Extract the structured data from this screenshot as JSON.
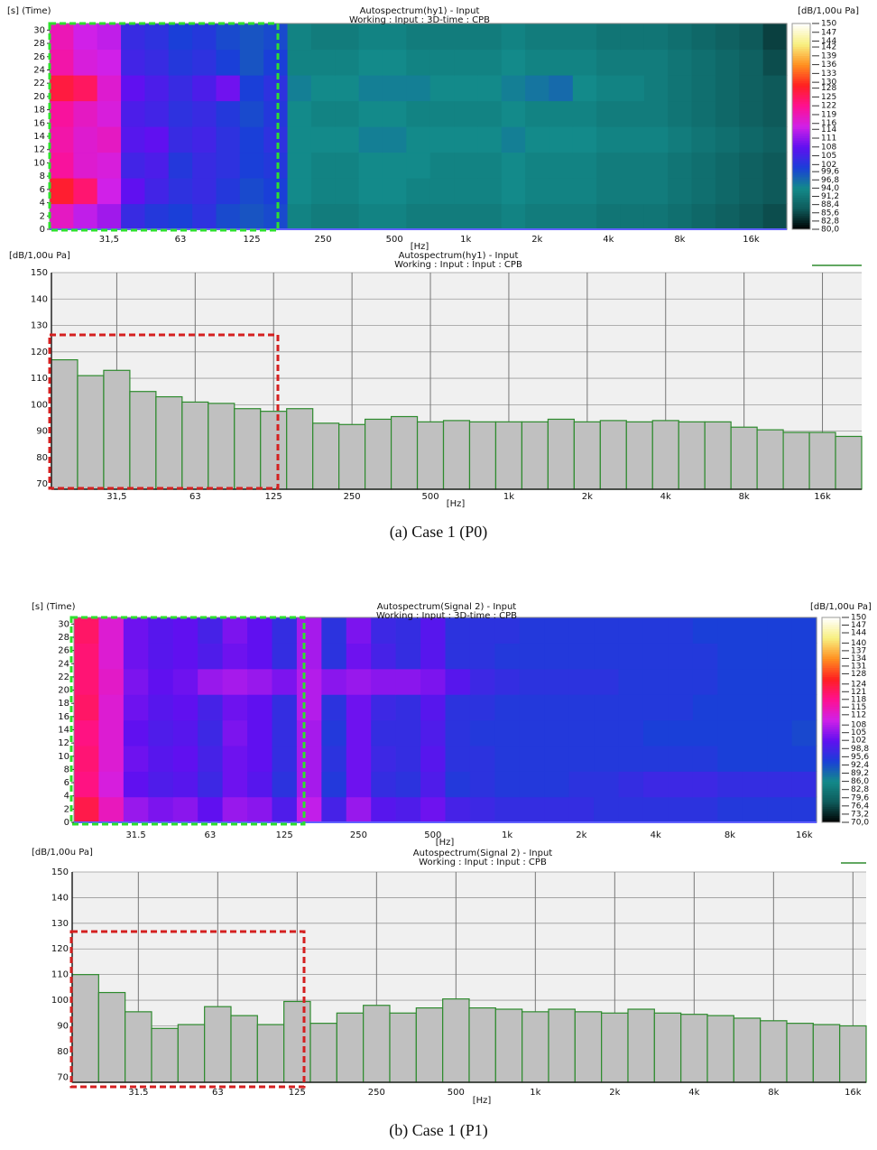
{
  "chart_data": [
    {
      "type": "heatmap",
      "title": "Autospectrum(hy1) - Input",
      "subtitle": "Working : Input : 3D-time : CPB",
      "ylabel": "[s] (Time)",
      "zlabel": "[dB/1,00u Pa]",
      "xlabel": "[Hz]",
      "categories": [
        null,
        null,
        "31,5",
        null,
        null,
        "63",
        null,
        null,
        "125",
        null,
        null,
        "250",
        null,
        null,
        "500",
        null,
        null,
        "1k",
        null,
        null,
        "2k",
        null,
        null,
        "4k",
        null,
        null,
        "8k",
        null,
        null,
        "16k",
        null
      ],
      "ylim": [
        0,
        31
      ],
      "yticks": [
        0,
        2,
        4,
        6,
        8,
        10,
        12,
        14,
        16,
        18,
        20,
        22,
        24,
        26,
        28,
        30
      ],
      "zlim": [
        80,
        150
      ],
      "zticks": [
        150,
        147,
        144,
        142,
        139,
        136,
        133,
        130,
        128,
        125,
        122,
        119,
        116,
        114,
        111,
        108,
        105,
        102,
        {
          "value": 99.6,
          "label": "99,6"
        },
        {
          "value": 96.8,
          "label": "96,8"
        },
        {
          "value": 94,
          "label": "94,0"
        },
        {
          "value": 91.2,
          "label": "91,2"
        },
        {
          "value": 88.4,
          "label": "88,4"
        },
        {
          "value": 85.6,
          "label": "85,6"
        },
        {
          "value": 82.8,
          "label": "82,8"
        },
        {
          "value": 80,
          "label": "80,0"
        }
      ],
      "colormap": [
        "#000000",
        "#0e5a5a",
        "#138a8a",
        "#1a3fd8",
        "#6010f0",
        "#d020e8",
        "#ff1090",
        "#ff2020",
        "#ff9020",
        "#f8f080",
        "#ffffff"
      ],
      "z": [
        [
          118,
          114,
          112,
          104,
          102,
          101,
          103,
          100,
          99,
          100,
          93,
          92,
          92,
          93,
          93,
          92,
          92,
          92,
          92,
          93,
          92,
          92,
          92,
          91,
          91,
          91,
          90,
          89,
          88,
          87,
          86
        ],
        [
          128,
          124,
          115,
          108,
          105,
          103,
          104,
          102,
          100,
          101,
          94,
          93,
          93,
          94,
          94,
          93,
          93,
          93,
          93,
          94,
          93,
          93,
          93,
          92,
          92,
          92,
          91,
          90,
          89,
          88,
          87
        ],
        [
          121,
          117,
          116,
          105,
          106,
          102,
          104,
          103,
          101,
          102,
          94,
          93,
          93,
          94,
          94,
          94,
          93,
          93,
          93,
          94,
          93,
          93,
          93,
          92,
          92,
          92,
          91,
          90,
          89,
          88,
          87
        ],
        [
          120,
          117,
          118,
          107,
          108,
          104,
          105,
          103,
          101,
          103,
          94,
          94,
          94,
          95,
          95,
          94,
          94,
          94,
          94,
          95,
          94,
          94,
          94,
          93,
          93,
          93,
          92,
          91,
          90,
          89,
          88
        ],
        [
          121,
          118,
          116,
          106,
          105,
          103,
          104,
          102,
          100,
          102,
          94,
          93,
          93,
          94,
          94,
          93,
          93,
          93,
          93,
          94,
          93,
          93,
          93,
          92,
          92,
          92,
          91,
          90,
          89,
          88,
          87
        ],
        [
          127,
          125,
          117,
          108,
          106,
          104,
          106,
          109,
          101,
          103,
          95,
          94,
          94,
          95,
          95,
          95,
          94,
          94,
          94,
          95,
          96,
          97,
          94,
          93,
          93,
          92,
          91,
          90,
          89,
          88,
          87
        ],
        [
          120,
          116,
          115,
          105,
          104,
          102,
          103,
          101,
          99,
          101,
          93,
          93,
          93,
          94,
          94,
          93,
          93,
          93,
          93,
          94,
          93,
          93,
          93,
          92,
          92,
          92,
          91,
          90,
          89,
          88,
          86
        ],
        [
          119,
          115,
          114,
          104,
          103,
          101,
          102,
          100,
          99,
          100,
          93,
          92,
          92,
          93,
          93,
          92,
          92,
          92,
          92,
          93,
          92,
          92,
          92,
          91,
          91,
          91,
          90,
          89,
          88,
          87,
          85
        ]
      ]
    },
    {
      "type": "bar",
      "title": "Autospectrum(hy1) - Input",
      "subtitle": "Working : Input : Input : CPB",
      "ylabel": "[dB/1,00u Pa]",
      "xlabel": "[Hz]",
      "caption": "(a)  Case  1  (P0)",
      "categories": [
        null,
        null,
        "31,5",
        null,
        null,
        "63",
        null,
        null,
        "125",
        null,
        null,
        "250",
        null,
        null,
        "500",
        null,
        null,
        "1k",
        null,
        null,
        "2k",
        null,
        null,
        "4k",
        null,
        null,
        "8k",
        null,
        null,
        "16k",
        null
      ],
      "values": [
        117,
        111,
        113,
        105,
        103,
        101,
        100.5,
        98.5,
        97.5,
        98.5,
        93,
        92.5,
        94.5,
        95.5,
        93.5,
        94,
        93.5,
        93.5,
        93.5,
        94.5,
        93.5,
        94,
        93.5,
        94,
        93.5,
        93.5,
        91.5,
        90.5,
        89.5,
        89.5,
        88
      ],
      "color": "#c0c0c0",
      "edgecolor": "#2e8b2e",
      "ylim": [
        68,
        150
      ],
      "yticks": [
        70,
        80,
        90,
        100,
        110,
        120,
        130,
        140,
        150
      ],
      "grid": true
    },
    {
      "type": "heatmap",
      "title": "Autospectrum(Signal 2) - Input",
      "subtitle": "Working : Input : 3D-time : CPB",
      "ylabel": "[s] (Time)",
      "zlabel": "[dB/1,00u Pa]",
      "xlabel": "[Hz]",
      "categories": [
        null,
        null,
        "31.5",
        null,
        null,
        "63",
        null,
        null,
        "125",
        null,
        null,
        "250",
        null,
        null,
        "500",
        null,
        null,
        "1k",
        null,
        null,
        "2k",
        null,
        null,
        "4k",
        null,
        null,
        "8k",
        null,
        null,
        "16k"
      ],
      "ylim": [
        0,
        31
      ],
      "yticks": [
        0,
        2,
        4,
        6,
        8,
        10,
        12,
        14,
        16,
        18,
        20,
        22,
        24,
        26,
        28,
        30
      ],
      "zlim": [
        70,
        150
      ],
      "zticks": [
        150,
        147,
        144,
        140,
        137,
        134,
        131,
        128,
        124,
        121,
        118,
        115,
        112,
        108,
        105,
        102,
        {
          "value": 98.8,
          "label": "98,8"
        },
        {
          "value": 95.6,
          "label": "95,6"
        },
        {
          "value": 92.4,
          "label": "92,4"
        },
        {
          "value": 89.2,
          "label": "89,2"
        },
        {
          "value": 86,
          "label": "86,0"
        },
        {
          "value": 82.8,
          "label": "82,8"
        },
        {
          "value": 79.6,
          "label": "79,6"
        },
        {
          "value": 76.4,
          "label": "76,4"
        },
        {
          "value": 73.2,
          "label": "73,2"
        },
        {
          "value": 70,
          "label": "70,0"
        }
      ],
      "colormap": [
        "#000000",
        "#0e5a5a",
        "#138a8a",
        "#1a3fd8",
        "#6010f0",
        "#d020e8",
        "#ff1090",
        "#ff2020",
        "#ff9020",
        "#f8f080",
        "#ffffff"
      ],
      "z": [
        [
          123,
          114,
          106,
          104,
          105,
          102,
          106,
          105,
          100,
          109,
          99,
          106,
          101,
          100,
          103,
          99,
          98,
          97,
          97,
          97,
          97,
          96,
          96,
          96,
          96,
          96,
          95,
          95,
          95,
          95
        ],
        [
          119,
          111,
          102,
          100,
          101,
          98,
          103,
          101,
          96,
          107,
          95,
          103,
          97,
          96,
          100,
          95,
          96,
          95,
          95,
          95,
          96,
          96,
          97,
          98,
          98,
          98,
          97,
          97,
          97,
          97
        ],
        [
          120,
          112,
          103,
          101,
          102,
          99,
          103,
          102,
          97,
          107,
          96,
          103,
          98,
          97,
          101,
          96,
          96,
          95,
          95,
          95,
          95,
          95,
          95,
          95,
          95,
          95,
          94,
          94,
          94,
          94
        ],
        [
          119,
          112,
          102,
          100,
          101,
          98,
          104,
          102,
          97,
          107,
          95,
          103,
          97,
          97,
          100,
          96,
          95,
          95,
          95,
          95,
          95,
          95,
          95,
          94,
          94,
          94,
          94,
          94,
          94,
          93
        ],
        [
          121,
          112,
          103,
          101,
          102,
          99,
          103,
          102,
          97,
          108,
          96,
          103,
          98,
          97,
          101,
          96,
          96,
          95,
          95,
          95,
          95,
          95,
          95,
          95,
          95,
          94,
          94,
          94,
          94,
          94
        ],
        [
          120,
          113,
          104,
          102,
          103,
          106,
          107,
          106,
          104,
          108,
          105,
          106,
          105,
          105,
          104,
          101,
          98,
          97,
          96,
          96,
          96,
          96,
          95,
          95,
          95,
          95,
          94,
          94,
          94,
          94
        ],
        [
          120,
          112,
          103,
          101,
          102,
          100,
          103,
          102,
          97,
          107,
          96,
          103,
          99,
          97,
          101,
          96,
          96,
          95,
          95,
          95,
          95,
          95,
          95,
          95,
          95,
          95,
          94,
          94,
          94,
          94
        ],
        [
          121,
          112,
          103,
          101,
          102,
          99,
          104,
          102,
          97,
          107,
          96,
          104,
          98,
          97,
          101,
          96,
          96,
          96,
          95,
          95,
          95,
          95,
          95,
          95,
          95,
          94,
          94,
          94,
          94,
          94
        ]
      ]
    },
    {
      "type": "bar",
      "title": "Autospectrum(Signal 2) - Input",
      "subtitle": "Working : Input : Input : CPB",
      "ylabel": "[dB/1,00u Pa]",
      "xlabel": "[Hz]",
      "caption": "(b)  Case  1  (P1)",
      "categories": [
        null,
        null,
        "31.5",
        null,
        null,
        "63",
        null,
        null,
        "125",
        null,
        null,
        "250",
        null,
        null,
        "500",
        null,
        null,
        "1k",
        null,
        null,
        "2k",
        null,
        null,
        "4k",
        null,
        null,
        "8k",
        null,
        null,
        "16k"
      ],
      "values": [
        110,
        103,
        95.5,
        89,
        90.5,
        97.5,
        94,
        90.5,
        99.5,
        91,
        95,
        98,
        95,
        97,
        100.5,
        97,
        96.5,
        95.5,
        96.5,
        95.5,
        95,
        96.5,
        95,
        94.5,
        94,
        93,
        92,
        91,
        90.5,
        90
      ],
      "color": "#c0c0c0",
      "edgecolor": "#2e8b2e",
      "ylim": [
        68,
        150
      ],
      "yticks": [
        70,
        80,
        90,
        100,
        110,
        120,
        130,
        140,
        150
      ],
      "grid": true
    }
  ]
}
